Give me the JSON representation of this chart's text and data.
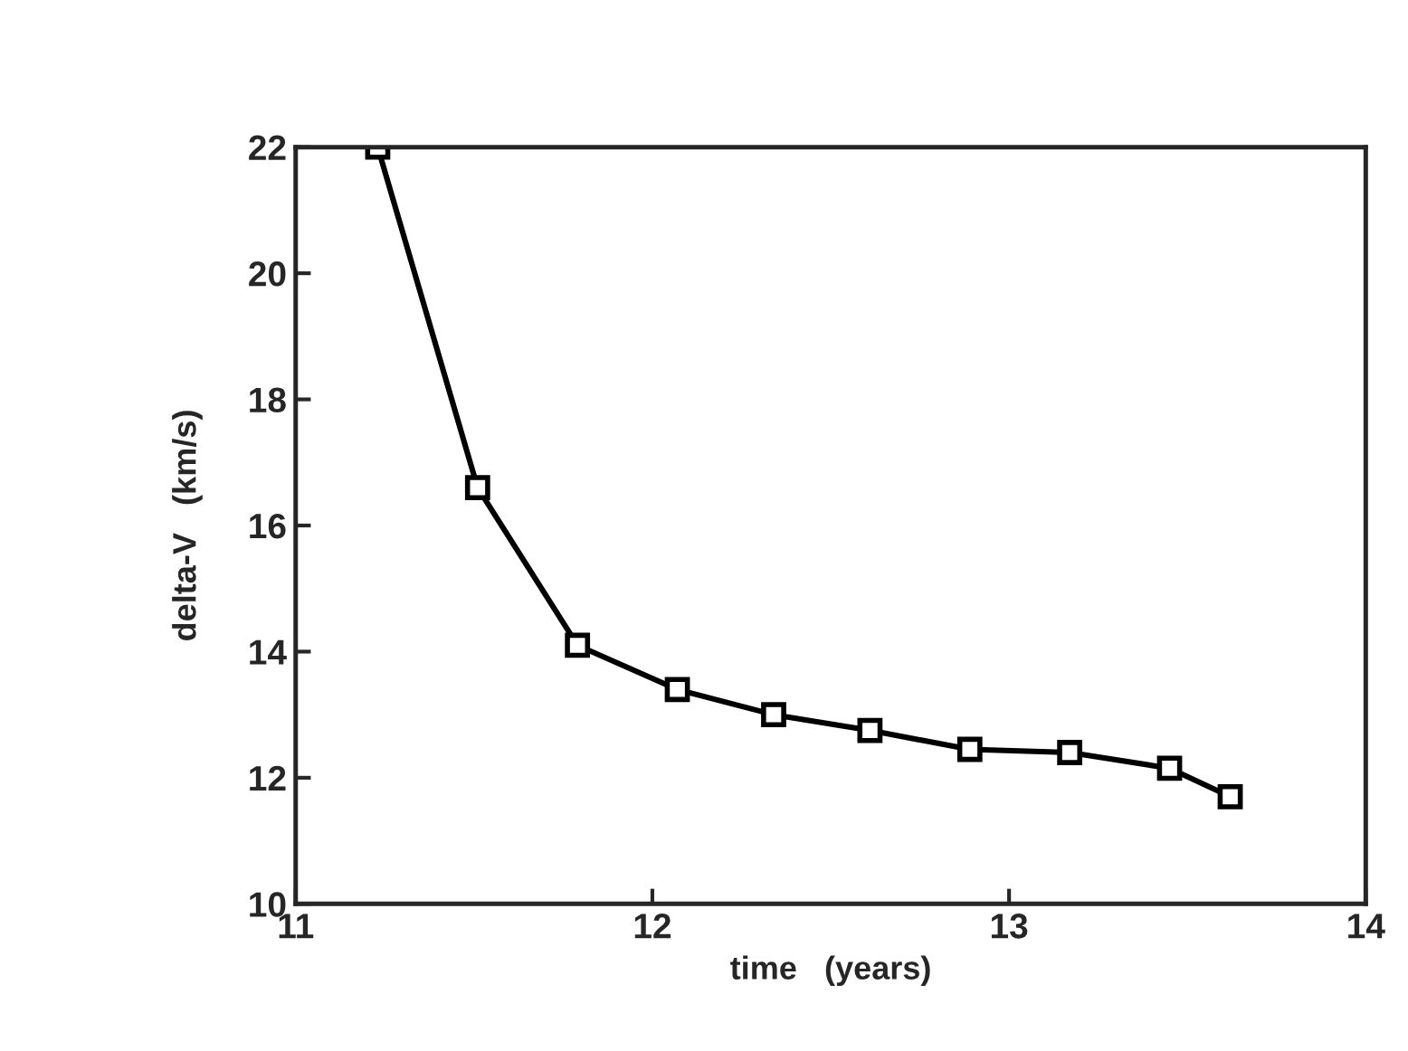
{
  "chart_data": {
    "type": "line",
    "xlabel": "time   (years)",
    "ylabel": "delta-V   (km/s)",
    "x": [
      11.23,
      11.51,
      11.79,
      12.07,
      12.34,
      12.61,
      12.89,
      13.17,
      13.45,
      13.62
    ],
    "series": [
      {
        "color": "#000000",
        "values": [
          22.0,
          16.6,
          14.1,
          13.4,
          13.0,
          12.75,
          12.45,
          12.4,
          12.15,
          11.7
        ]
      }
    ],
    "xlim": [
      11,
      14
    ],
    "xticks": [
      11,
      12,
      13,
      14
    ],
    "ylim": [
      10,
      22
    ],
    "yticks": [
      10,
      12,
      14,
      16,
      18,
      20,
      22
    ],
    "marker": "square",
    "line_style": "solid",
    "grid": false,
    "legend": false
  }
}
